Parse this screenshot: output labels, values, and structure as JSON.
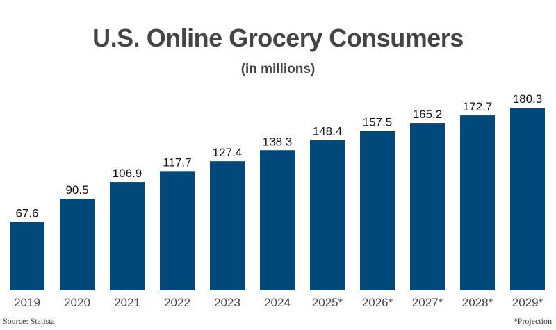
{
  "chart_data": {
    "type": "bar",
    "title": "U.S. Online Grocery Consumers",
    "subtitle": "(in millions)",
    "categories": [
      "2019",
      "2020",
      "2021",
      "2022",
      "2023",
      "2024",
      "2025*",
      "2026*",
      "2027*",
      "2028*",
      "2029*"
    ],
    "values": [
      67.6,
      90.5,
      106.9,
      117.7,
      127.4,
      138.3,
      148.4,
      157.5,
      165.2,
      172.7,
      180.3
    ],
    "xlabel": "",
    "ylabel": "",
    "ylim": [
      0,
      180.3
    ],
    "bar_color": "#00497a",
    "grid": false
  },
  "footer": {
    "source": "Source: Statista",
    "note": "*Projection"
  }
}
